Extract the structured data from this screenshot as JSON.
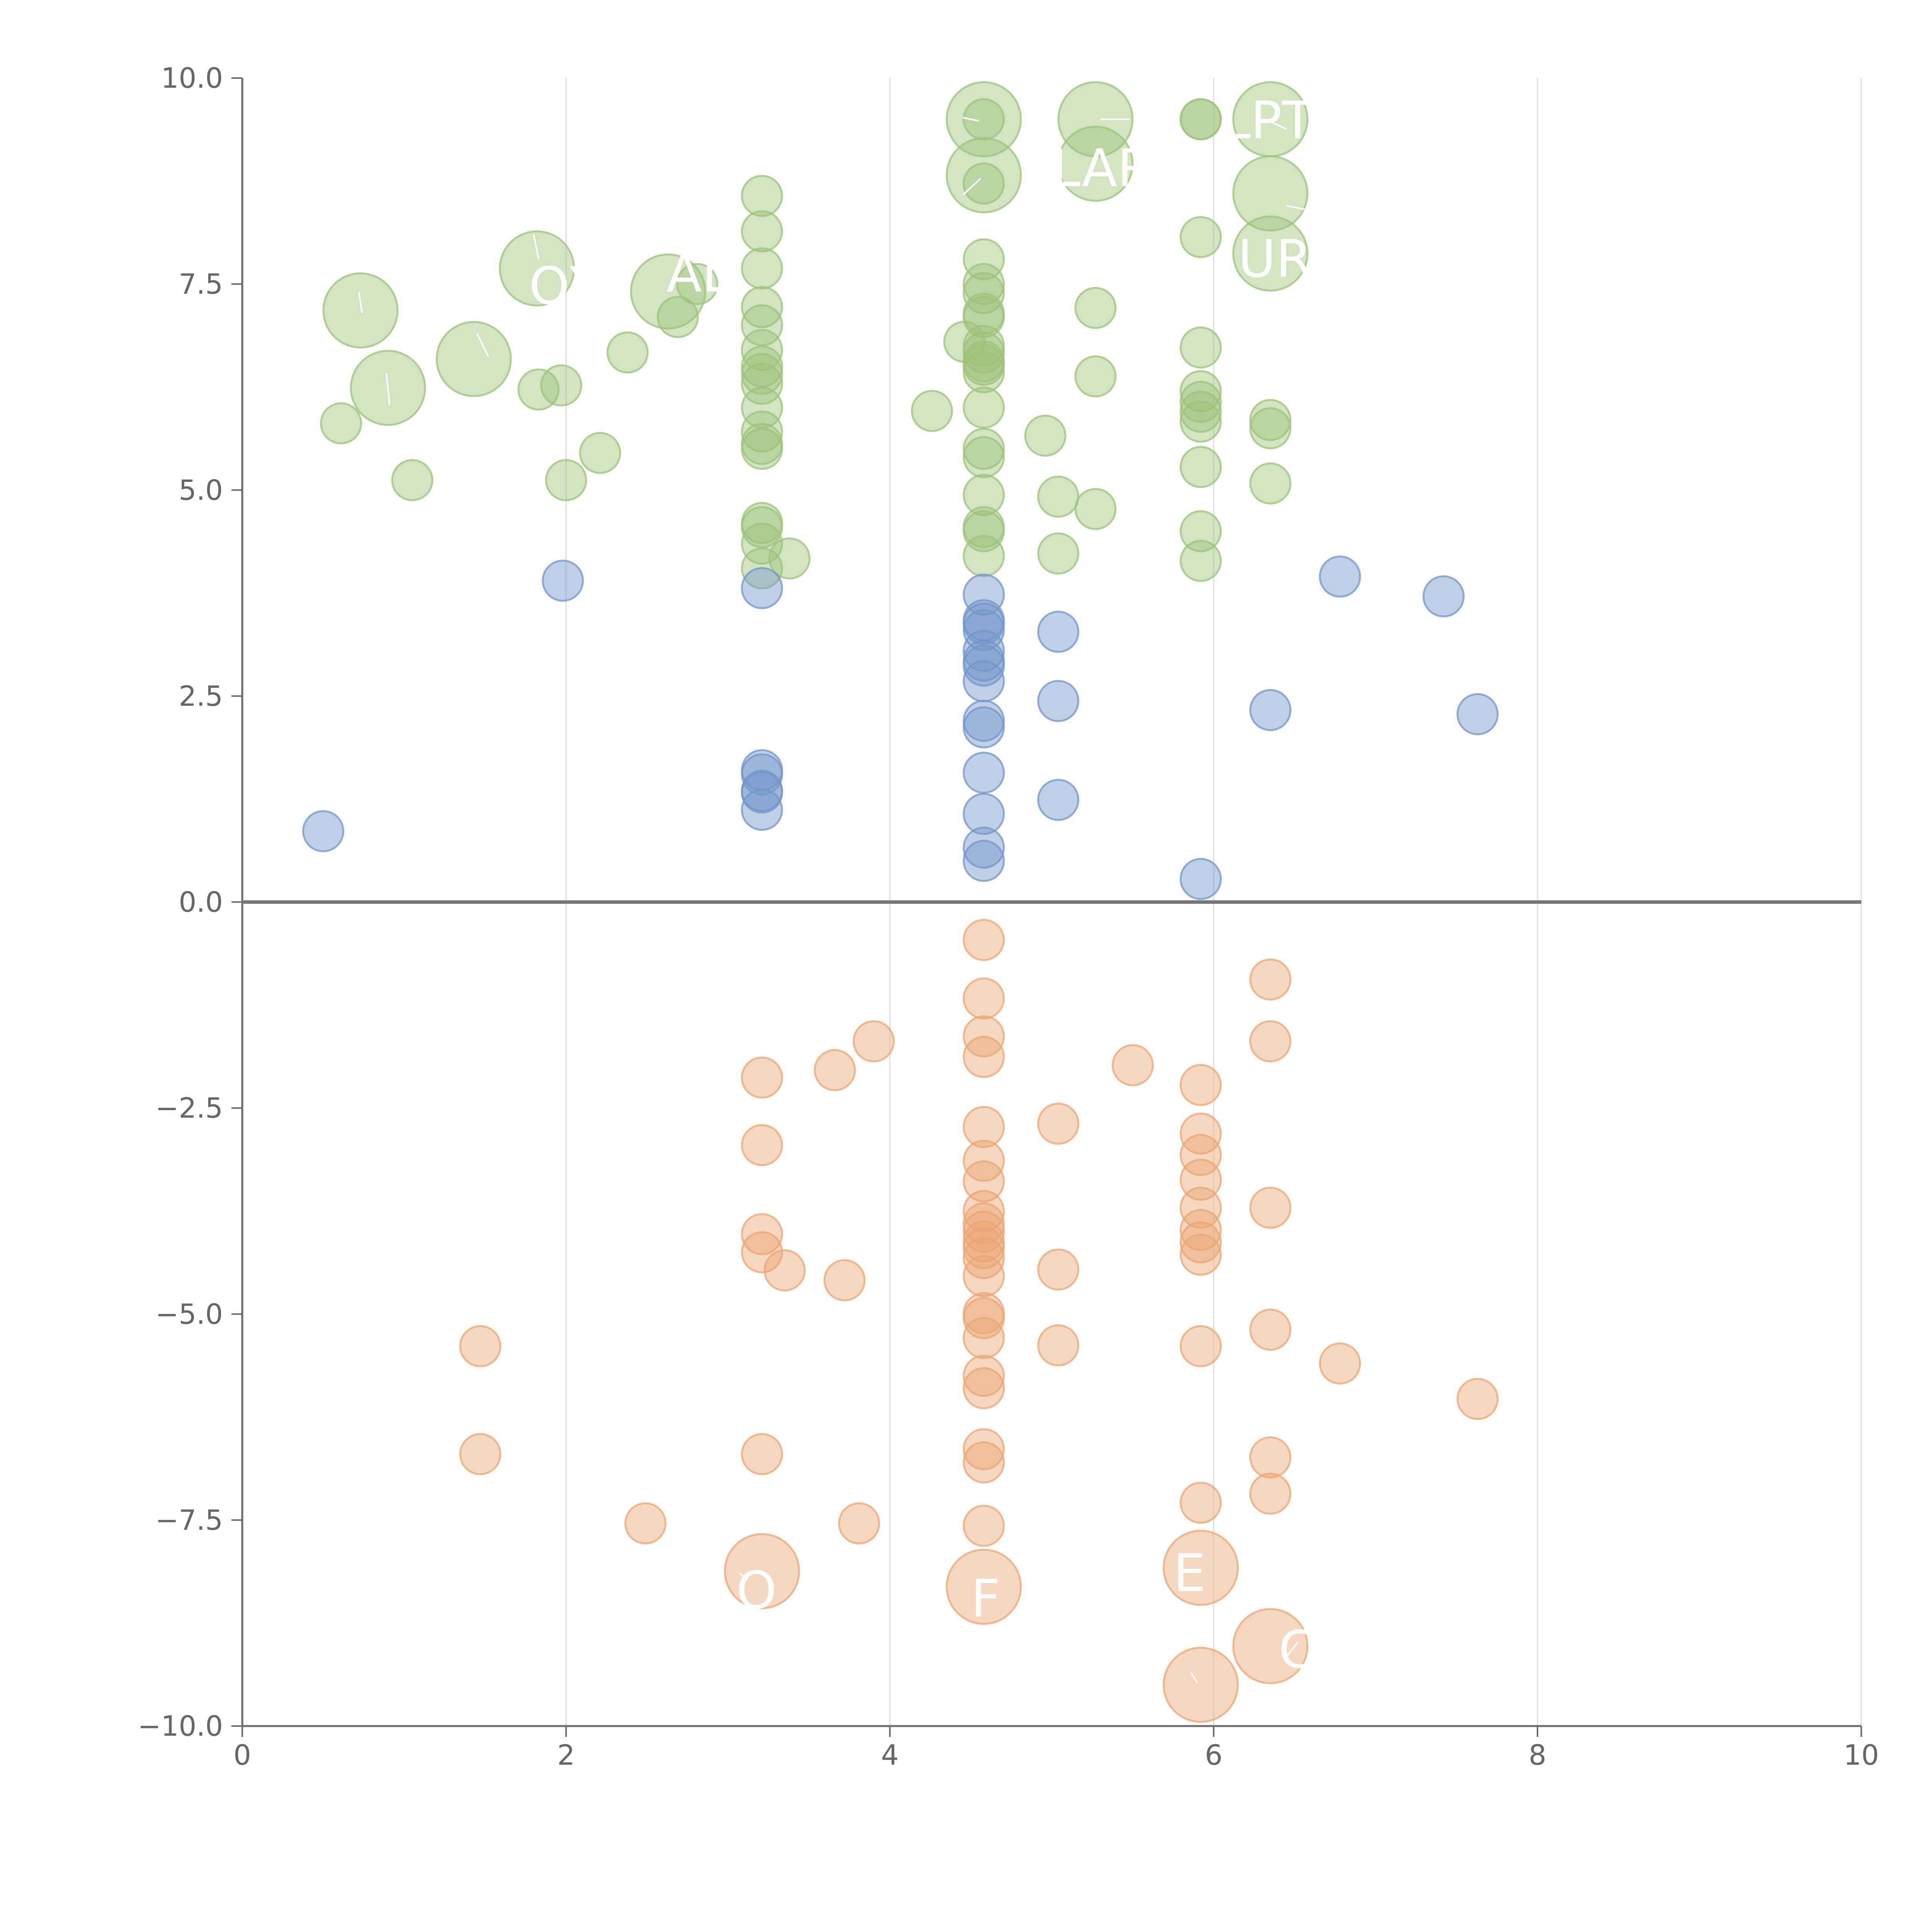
{
  "chart_data": {
    "type": "scatter",
    "xlim": [
      0,
      10
    ],
    "ylim": [
      -10,
      10
    ],
    "x_ticks": [
      0,
      2,
      4,
      6,
      8,
      10
    ],
    "x_tick_labels": [
      "0",
      "2",
      "4",
      "6",
      "8",
      "10"
    ],
    "y_ticks": [
      10,
      7.5,
      5,
      2.5,
      0,
      -2.5,
      -5,
      -7.5,
      -10
    ],
    "y_tick_labels": [
      "10.0",
      "7.5",
      "5.0",
      "2.5",
      "0.0",
      "−2.5",
      "−5.0",
      "−7.5",
      "−10.0"
    ],
    "grid_x": true,
    "grid_y": false,
    "zero_line": true,
    "series": [
      {
        "color": "#9dc379",
        "points": [
          [
            0.61,
            5.81,
            "s"
          ],
          [
            0.73,
            7.18,
            "l"
          ],
          [
            0.9,
            6.24,
            "l"
          ],
          [
            1.05,
            5.12,
            "s"
          ],
          [
            1.43,
            6.59,
            "l"
          ],
          [
            1.82,
            7.69,
            "l"
          ],
          [
            1.83,
            6.22,
            "s"
          ],
          [
            1.97,
            6.27,
            "s"
          ],
          [
            2.0,
            5.12,
            "s"
          ],
          [
            2.21,
            5.45,
            "s"
          ],
          [
            2.38,
            6.67,
            "s"
          ],
          [
            2.63,
            7.41,
            "l"
          ],
          [
            2.69,
            7.1,
            "s"
          ],
          [
            2.81,
            7.5,
            "s"
          ],
          [
            3.21,
            8.57,
            "s"
          ],
          [
            3.21,
            8.14,
            "s"
          ],
          [
            3.21,
            7.69,
            "s"
          ],
          [
            3.21,
            7.22,
            "s"
          ],
          [
            3.21,
            7.0,
            "s"
          ],
          [
            3.21,
            6.7,
            "s"
          ],
          [
            3.21,
            6.5,
            "s"
          ],
          [
            3.21,
            6.41,
            "s"
          ],
          [
            3.21,
            6.29,
            "s"
          ],
          [
            3.21,
            6.0,
            "s"
          ],
          [
            3.21,
            5.71,
            "s"
          ],
          [
            3.21,
            5.56,
            "s"
          ],
          [
            3.21,
            5.5,
            "s"
          ],
          [
            3.21,
            4.6,
            "s"
          ],
          [
            3.21,
            4.55,
            "s"
          ],
          [
            3.21,
            4.35,
            "s"
          ],
          [
            3.21,
            4.05,
            "s"
          ],
          [
            3.38,
            4.17,
            "s"
          ],
          [
            4.26,
            5.96,
            "s"
          ],
          [
            4.46,
            6.8,
            "s"
          ],
          [
            4.58,
            9.5,
            "l"
          ],
          [
            4.58,
            9.5,
            "s"
          ],
          [
            4.58,
            8.82,
            "l"
          ],
          [
            4.58,
            8.72,
            "s"
          ],
          [
            4.58,
            7.8,
            "s"
          ],
          [
            4.58,
            7.5,
            "s"
          ],
          [
            4.58,
            7.39,
            "s"
          ],
          [
            4.58,
            7.14,
            "s"
          ],
          [
            4.58,
            7.1,
            "s"
          ],
          [
            4.58,
            6.75,
            "s"
          ],
          [
            4.58,
            6.67,
            "s"
          ],
          [
            4.58,
            6.56,
            "s"
          ],
          [
            4.58,
            6.52,
            "s"
          ],
          [
            4.58,
            6.43,
            "s"
          ],
          [
            4.58,
            6.0,
            "s"
          ],
          [
            4.58,
            5.5,
            "s"
          ],
          [
            4.58,
            5.4,
            "s"
          ],
          [
            4.58,
            4.94,
            "s"
          ],
          [
            4.58,
            4.55,
            "s"
          ],
          [
            4.58,
            4.5,
            "s"
          ],
          [
            4.58,
            4.2,
            "s"
          ],
          [
            4.96,
            5.66,
            "s"
          ],
          [
            5.04,
            4.92,
            "s"
          ],
          [
            5.04,
            4.23,
            "s"
          ],
          [
            5.27,
            9.5,
            "l"
          ],
          [
            5.27,
            8.96,
            "l"
          ],
          [
            5.27,
            7.21,
            "s"
          ],
          [
            5.27,
            6.38,
            "s"
          ],
          [
            5.27,
            4.77,
            "s"
          ],
          [
            5.92,
            9.5,
            "s"
          ],
          [
            5.92,
            9.5,
            "s"
          ],
          [
            5.92,
            8.07,
            "s"
          ],
          [
            5.92,
            6.73,
            "s"
          ],
          [
            5.92,
            6.2,
            "s"
          ],
          [
            5.92,
            6.07,
            "s"
          ],
          [
            5.92,
            5.95,
            "s"
          ],
          [
            5.92,
            5.83,
            "s"
          ],
          [
            5.92,
            5.28,
            "s"
          ],
          [
            5.92,
            4.5,
            "s"
          ],
          [
            5.92,
            4.14,
            "s"
          ],
          [
            6.35,
            9.5,
            "l"
          ],
          [
            6.35,
            8.6,
            "l"
          ],
          [
            6.35,
            7.87,
            "l"
          ],
          [
            6.35,
            5.85,
            "s"
          ],
          [
            6.35,
            5.75,
            "s"
          ],
          [
            6.35,
            5.08,
            "s"
          ]
        ]
      },
      {
        "color": "#7396ca",
        "points": [
          [
            0.5,
            0.86,
            "s"
          ],
          [
            1.98,
            3.9,
            "s"
          ],
          [
            3.21,
            3.81,
            "s"
          ],
          [
            3.21,
            1.6,
            "s"
          ],
          [
            3.21,
            1.55,
            "s"
          ],
          [
            3.21,
            1.35,
            "s"
          ],
          [
            3.21,
            1.33,
            "s"
          ],
          [
            3.21,
            1.12,
            "s"
          ],
          [
            4.58,
            3.73,
            "s"
          ],
          [
            4.58,
            3.42,
            "s"
          ],
          [
            4.58,
            3.38,
            "s"
          ],
          [
            4.58,
            3.3,
            "s"
          ],
          [
            4.58,
            3.05,
            "s"
          ],
          [
            4.58,
            2.93,
            "s"
          ],
          [
            4.58,
            2.87,
            "s"
          ],
          [
            4.58,
            2.68,
            "s"
          ],
          [
            4.58,
            2.2,
            "s"
          ],
          [
            4.58,
            2.12,
            "s"
          ],
          [
            4.58,
            1.57,
            "s"
          ],
          [
            4.58,
            1.07,
            "s"
          ],
          [
            4.58,
            0.66,
            "s"
          ],
          [
            4.58,
            0.5,
            "s"
          ],
          [
            5.04,
            3.28,
            "s"
          ],
          [
            5.04,
            2.44,
            "s"
          ],
          [
            5.04,
            1.24,
            "s"
          ],
          [
            5.92,
            0.28,
            "s"
          ],
          [
            6.35,
            2.33,
            "s"
          ],
          [
            6.78,
            3.95,
            "s"
          ],
          [
            7.42,
            3.71,
            "s"
          ],
          [
            7.63,
            2.28,
            "s"
          ]
        ]
      },
      {
        "color": "#eaa774",
        "points": [
          [
            1.47,
            -5.39,
            "s"
          ],
          [
            1.47,
            -6.7,
            "s"
          ],
          [
            2.49,
            -7.54,
            "s"
          ],
          [
            3.21,
            -2.13,
            "s"
          ],
          [
            3.21,
            -2.95,
            "s"
          ],
          [
            3.21,
            -4.03,
            "s"
          ],
          [
            3.21,
            -4.25,
            "s"
          ],
          [
            3.21,
            -6.7,
            "s"
          ],
          [
            3.21,
            -8.12,
            "l"
          ],
          [
            3.35,
            -4.47,
            "s"
          ],
          [
            3.66,
            -2.04,
            "s"
          ],
          [
            3.72,
            -4.59,
            "s"
          ],
          [
            3.81,
            -7.54,
            "s"
          ],
          [
            3.9,
            -1.69,
            "s"
          ],
          [
            4.58,
            -0.46,
            "s"
          ],
          [
            4.58,
            -1.17,
            "s"
          ],
          [
            4.58,
            -1.63,
            "s"
          ],
          [
            4.58,
            -1.88,
            "s"
          ],
          [
            4.58,
            -2.73,
            "s"
          ],
          [
            4.58,
            -3.14,
            "s"
          ],
          [
            4.58,
            -3.39,
            "s"
          ],
          [
            4.58,
            -3.75,
            "s"
          ],
          [
            4.58,
            -3.9,
            "s"
          ],
          [
            4.58,
            -4.0,
            "s"
          ],
          [
            4.58,
            -4.12,
            "s"
          ],
          [
            4.58,
            -4.2,
            "s"
          ],
          [
            4.58,
            -4.32,
            "s"
          ],
          [
            4.58,
            -4.54,
            "s"
          ],
          [
            4.58,
            -4.99,
            "s"
          ],
          [
            4.58,
            -5.05,
            "s"
          ],
          [
            4.58,
            -5.29,
            "s"
          ],
          [
            4.58,
            -5.75,
            "s"
          ],
          [
            4.58,
            -5.9,
            "s"
          ],
          [
            4.58,
            -6.64,
            "s"
          ],
          [
            4.58,
            -6.8,
            "s"
          ],
          [
            4.58,
            -7.57,
            "s"
          ],
          [
            4.58,
            -8.31,
            "l"
          ],
          [
            5.04,
            -2.69,
            "s"
          ],
          [
            5.04,
            -4.46,
            "s"
          ],
          [
            5.04,
            -5.38,
            "s"
          ],
          [
            5.5,
            -1.98,
            "s"
          ],
          [
            5.92,
            -2.22,
            "s"
          ],
          [
            5.92,
            -2.81,
            "s"
          ],
          [
            5.92,
            -3.07,
            "s"
          ],
          [
            5.92,
            -3.37,
            "s"
          ],
          [
            5.92,
            -3.71,
            "s"
          ],
          [
            5.92,
            -3.98,
            "s"
          ],
          [
            5.92,
            -4.13,
            "s"
          ],
          [
            5.92,
            -4.28,
            "s"
          ],
          [
            5.92,
            -5.39,
            "s"
          ],
          [
            5.92,
            -7.29,
            "s"
          ],
          [
            5.92,
            -8.08,
            "l"
          ],
          [
            5.92,
            -9.5,
            "l"
          ],
          [
            6.35,
            -0.94,
            "s"
          ],
          [
            6.35,
            -1.69,
            "s"
          ],
          [
            6.35,
            -3.71,
            "s"
          ],
          [
            6.35,
            -5.19,
            "s"
          ],
          [
            6.35,
            -6.74,
            "s"
          ],
          [
            6.35,
            -7.18,
            "s"
          ],
          [
            6.35,
            -9.03,
            "l"
          ],
          [
            6.78,
            -5.6,
            "s"
          ],
          [
            7.63,
            -6.03,
            "s"
          ]
        ]
      }
    ],
    "annotations": [
      {
        "text": "OX",
        "x": 1.77,
        "y": 7.47
      },
      {
        "text": "AL",
        "x": 2.62,
        "y": 7.62
      },
      {
        "text": "LAR",
        "x": 5.0,
        "y": 8.9
      },
      {
        "text": "LPT",
        "x": 6.05,
        "y": 9.48
      },
      {
        "text": "UR",
        "x": 6.15,
        "y": 7.8
      },
      {
        "text": "E",
        "x": 5.75,
        "y": -8.15
      },
      {
        "text": "C",
        "x": 6.4,
        "y": -9.08
      },
      {
        "text": "O",
        "x": 3.05,
        "y": -8.36
      },
      {
        "text": "F",
        "x": 4.5,
        "y": -8.46
      }
    ]
  }
}
